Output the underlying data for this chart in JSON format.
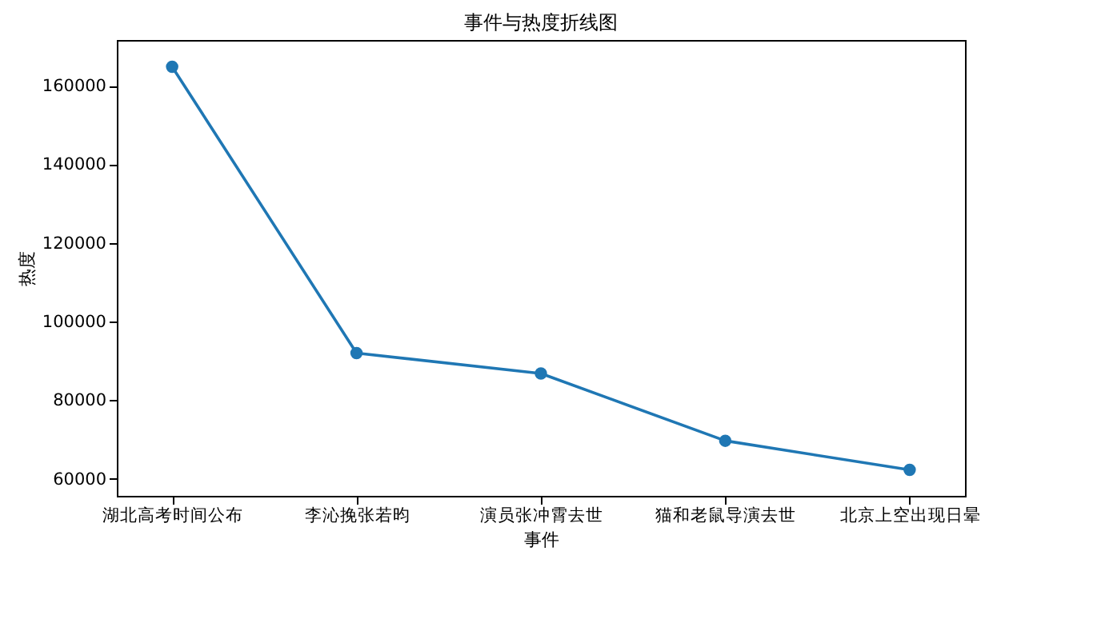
{
  "chart_data": {
    "type": "line",
    "title": "事件与热度折线图",
    "xlabel": "事件",
    "ylabel": "热度",
    "categories": [
      "湖北高考时间公布",
      "李沁挽张若昀",
      "演员张冲霄去世",
      "猫和老鼠导演去世",
      "北京上空出现日晕"
    ],
    "series": [
      {
        "color": "#1f77b4",
        "values": [
          164800,
          92000,
          86800,
          69700,
          62300
        ]
      }
    ],
    "ylim": [
      55700,
      171600
    ],
    "yticks": [
      60000,
      80000,
      100000,
      120000,
      140000,
      160000
    ],
    "marker": "circle",
    "grid": false
  }
}
